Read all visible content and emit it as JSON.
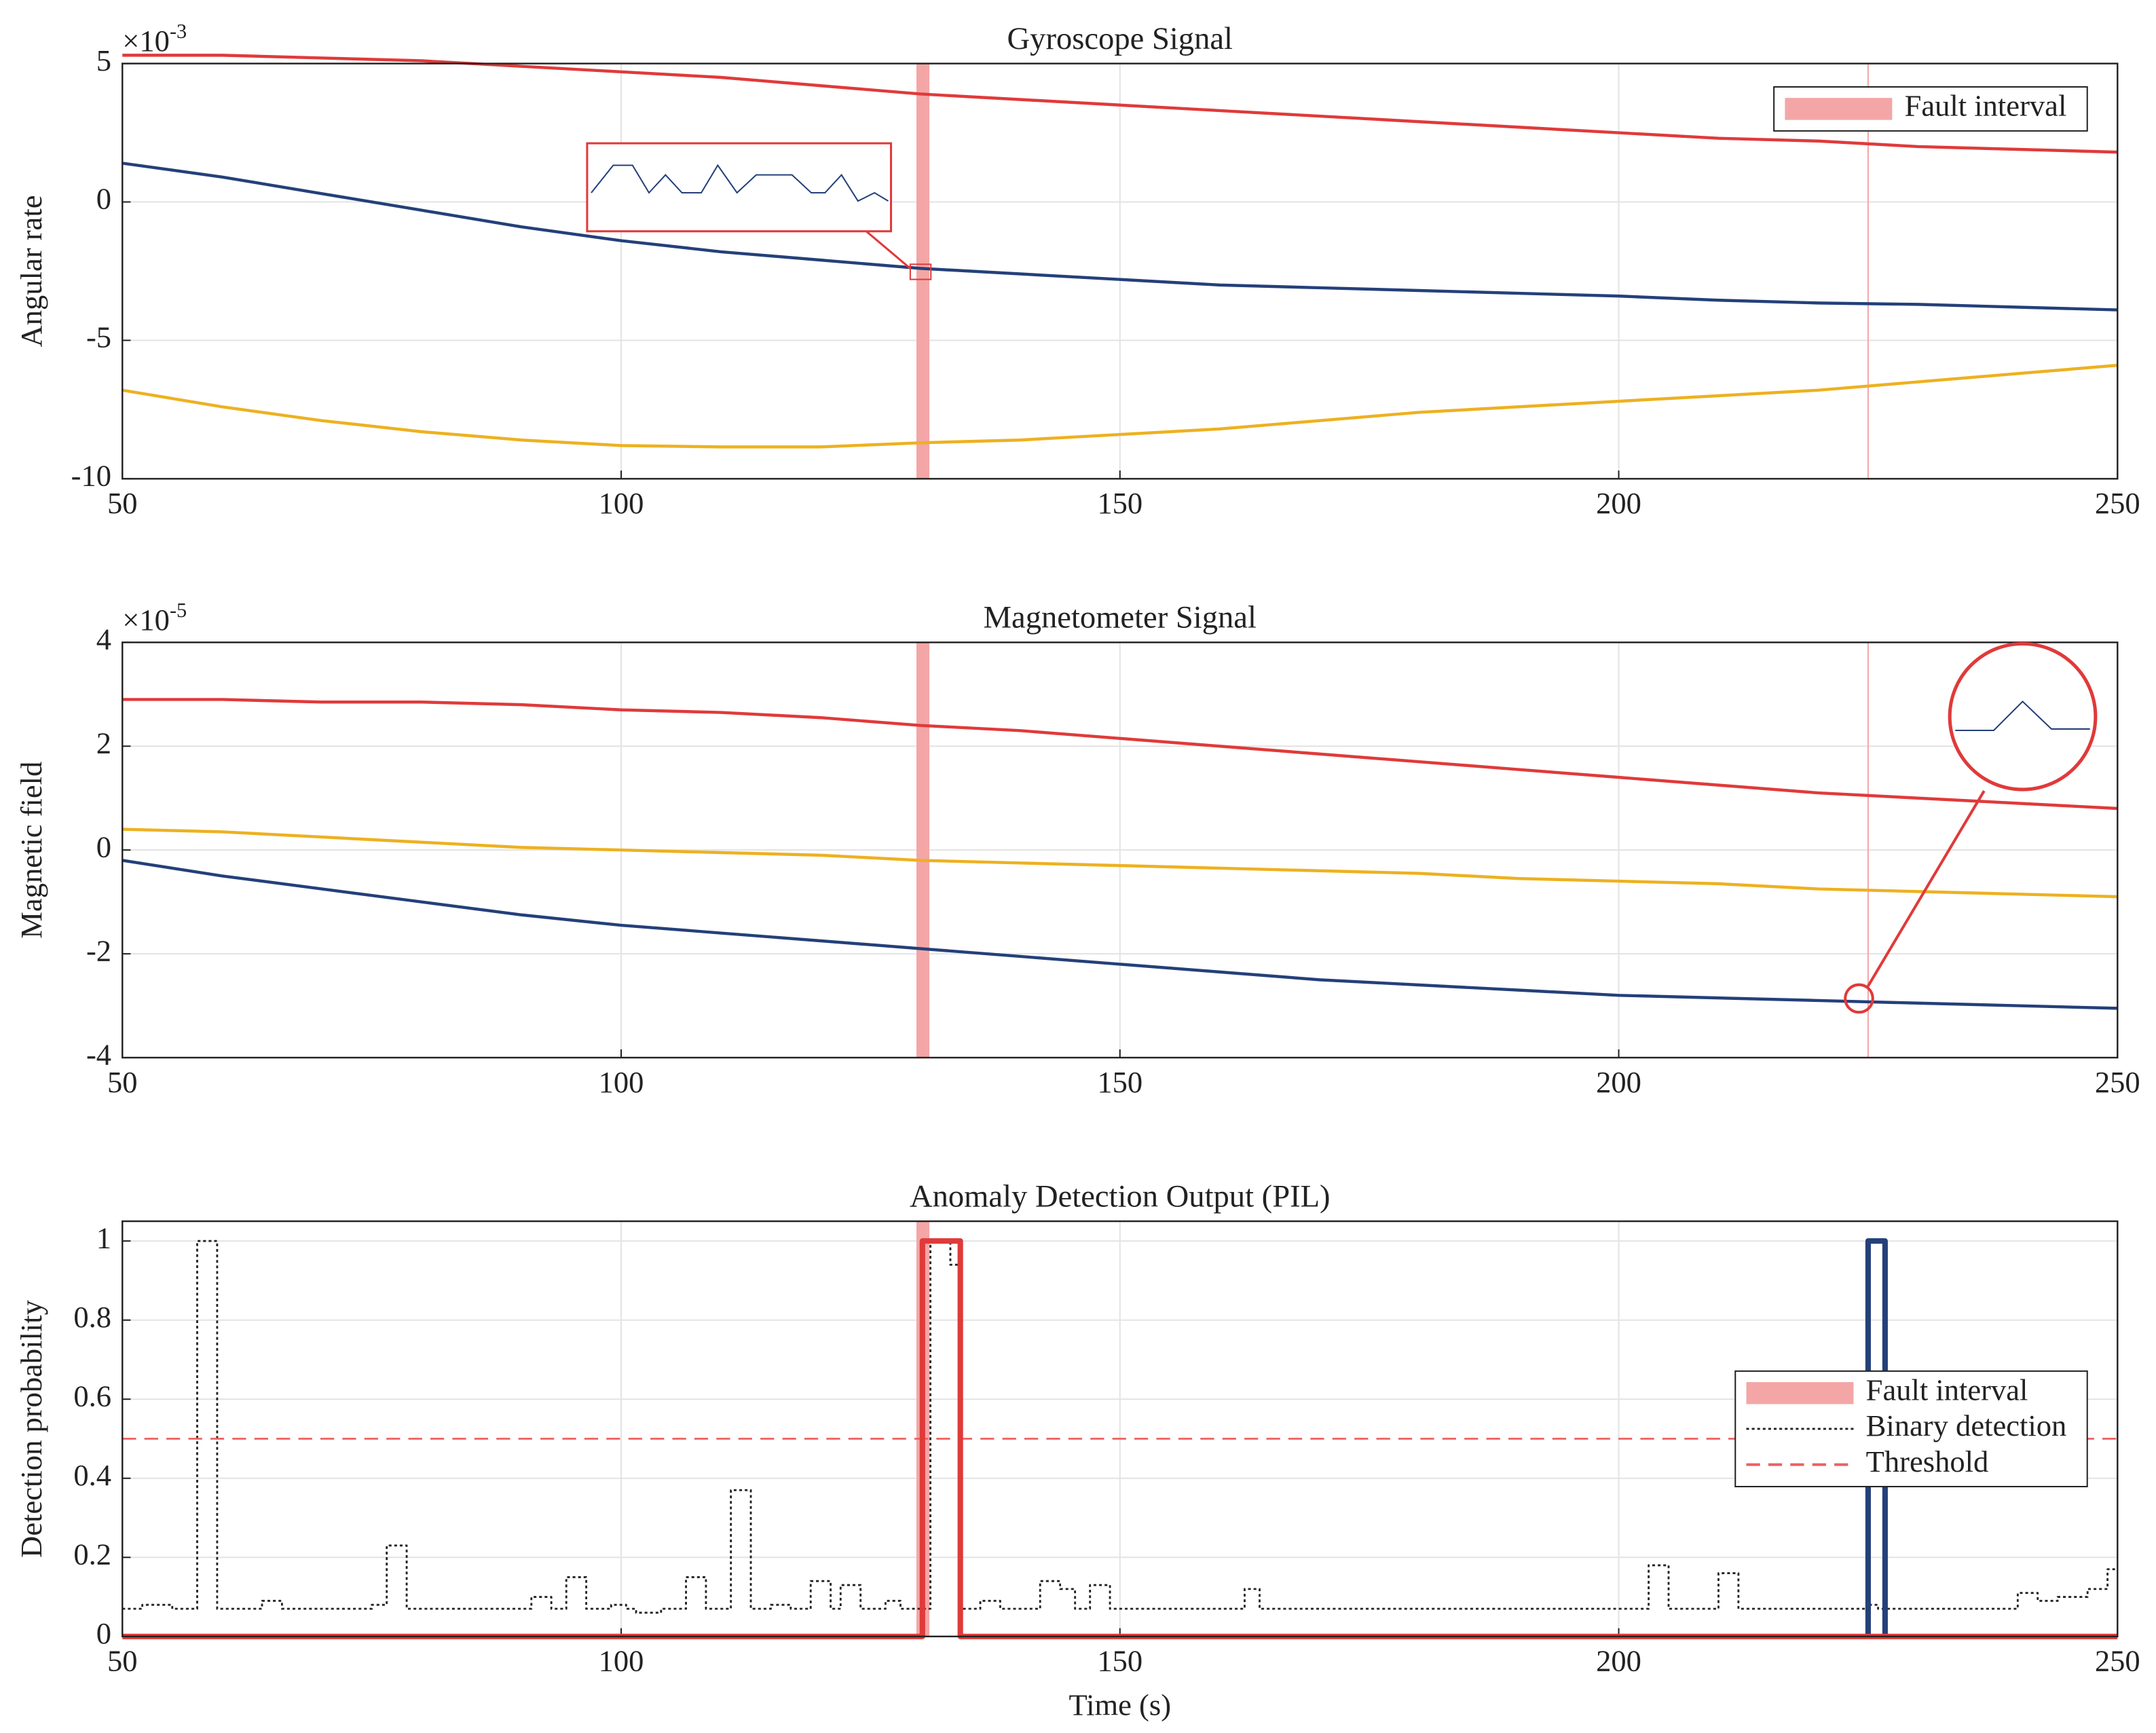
{
  "chart_data": [
    {
      "type": "line",
      "title": "Gyroscope Signal",
      "ylabel": "Angular rate",
      "y_multiplier": "×10",
      "y_exponent": "-3",
      "xlim": [
        50,
        250
      ],
      "xticks": [
        50,
        100,
        150,
        200,
        250
      ],
      "ylim": [
        -10,
        5
      ],
      "yticks": [
        -10,
        -5,
        0,
        5
      ],
      "grid": true,
      "legend": "northeast",
      "fault_interval": {
        "label": "Fault interval",
        "x": [
          129.6,
          130.9
        ],
        "color": "#f4a6a6"
      },
      "fault_lines": [
        225
      ],
      "x": [
        50,
        60,
        70,
        80,
        90,
        100,
        110,
        120,
        130,
        140,
        150,
        160,
        170,
        180,
        190,
        200,
        210,
        220,
        230,
        240,
        250
      ],
      "series": [
        {
          "color": "#e03a3a",
          "values": [
            5.3,
            5.3,
            5.2,
            5.1,
            4.9,
            4.7,
            4.5,
            4.2,
            3.9,
            3.7,
            3.5,
            3.3,
            3.1,
            2.9,
            2.7,
            2.5,
            2.3,
            2.2,
            2.0,
            1.9,
            1.8
          ]
        },
        {
          "color": "#24407a",
          "values": [
            1.4,
            0.9,
            0.3,
            -0.3,
            -0.9,
            -1.4,
            -1.8,
            -2.1,
            -2.4,
            -2.6,
            -2.8,
            -3.0,
            -3.1,
            -3.2,
            -3.3,
            -3.4,
            -3.55,
            -3.65,
            -3.7,
            -3.8,
            -3.9
          ]
        },
        {
          "color": "#edb120",
          "values": [
            -6.8,
            -7.4,
            -7.9,
            -8.3,
            -8.6,
            -8.8,
            -8.85,
            -8.85,
            -8.7,
            -8.6,
            -8.4,
            -8.2,
            -7.9,
            -7.6,
            -7.4,
            -7.2,
            -7.0,
            -6.8,
            -6.5,
            -6.2,
            -5.9
          ]
        }
      ]
    },
    {
      "type": "line",
      "title": "Magnetometer Signal",
      "ylabel": "Magnetic field",
      "y_multiplier": "×10",
      "y_exponent": "-5",
      "xlim": [
        50,
        250
      ],
      "xticks": [
        50,
        100,
        150,
        200,
        250
      ],
      "ylim": [
        -4,
        4
      ],
      "yticks": [
        -4,
        -2,
        0,
        2,
        4
      ],
      "grid": true,
      "fault_interval": {
        "x": [
          129.6,
          130.9
        ],
        "color": "#f4a6a6"
      },
      "fault_lines": [
        225
      ],
      "x": [
        50,
        60,
        70,
        80,
        90,
        100,
        110,
        120,
        130,
        140,
        150,
        160,
        170,
        180,
        190,
        200,
        210,
        220,
        230,
        240,
        250
      ],
      "series": [
        {
          "color": "#e03a3a",
          "values": [
            2.9,
            2.9,
            2.85,
            2.85,
            2.8,
            2.7,
            2.65,
            2.55,
            2.4,
            2.3,
            2.15,
            2.0,
            1.85,
            1.7,
            1.55,
            1.4,
            1.25,
            1.1,
            1.0,
            0.9,
            0.8
          ]
        },
        {
          "color": "#edb120",
          "values": [
            0.4,
            0.35,
            0.25,
            0.15,
            0.05,
            0.0,
            -0.05,
            -0.1,
            -0.2,
            -0.25,
            -0.3,
            -0.35,
            -0.4,
            -0.45,
            -0.55,
            -0.6,
            -0.65,
            -0.75,
            -0.8,
            -0.85,
            -0.9
          ]
        },
        {
          "color": "#24407a",
          "values": [
            -0.2,
            -0.5,
            -0.75,
            -1.0,
            -1.25,
            -1.45,
            -1.6,
            -1.75,
            -1.9,
            -2.05,
            -2.2,
            -2.35,
            -2.5,
            -2.6,
            -2.7,
            -2.8,
            -2.85,
            -2.9,
            -2.95,
            -3.0,
            -3.05
          ]
        }
      ]
    },
    {
      "type": "line",
      "title": "Anomaly Detection Output (PIL)",
      "xlabel": "Time (s)",
      "ylabel": "Detection probability",
      "xlim": [
        50,
        250
      ],
      "xticks": [
        50,
        100,
        150,
        200,
        250
      ],
      "ylim": [
        0,
        1.05
      ],
      "yticks": [
        0,
        0.2,
        0.4,
        0.6,
        0.8,
        1
      ],
      "grid": true,
      "legend": "east",
      "fault_interval": {
        "label": "Fault interval",
        "x": [
          129.6,
          130.9
        ],
        "color": "#f4a6a6"
      },
      "series": [
        {
          "name": "Binary detection",
          "color": "#222222",
          "dash": "dotted",
          "step": true,
          "x": [
            50,
            52,
            55,
            57.5,
            59.5,
            64,
            66,
            75,
            76.5,
            78.5,
            91,
            93,
            94.5,
            96.5,
            99,
            100.5,
            101.5,
            104,
            106.5,
            108.5,
            111,
            113,
            115,
            117,
            119,
            121,
            122,
            124,
            126.5,
            128,
            131,
            133,
            134,
            136,
            138,
            142,
            144,
            145.5,
            147,
            149,
            162.5,
            164,
            175,
            203,
            205,
            210,
            212,
            225,
            226,
            240,
            242,
            244,
            247,
            249,
            250
          ],
          "values": [
            0.07,
            0.08,
            0.07,
            1.0,
            0.07,
            0.09,
            0.07,
            0.08,
            0.23,
            0.07,
            0.1,
            0.07,
            0.15,
            0.07,
            0.08,
            0.07,
            0.06,
            0.07,
            0.15,
            0.07,
            0.37,
            0.07,
            0.08,
            0.07,
            0.14,
            0.07,
            0.13,
            0.07,
            0.09,
            0.07,
            1.0,
            0.94,
            0.07,
            0.09,
            0.07,
            0.14,
            0.12,
            0.07,
            0.13,
            0.07,
            0.12,
            0.07,
            0.07,
            0.18,
            0.07,
            0.16,
            0.07,
            0.08,
            0.07,
            0.11,
            0.09,
            0.1,
            0.12,
            0.17,
            0.17
          ]
        },
        {
          "name": "Threshold",
          "color": "#ee6060",
          "dash": "dashed",
          "x": [
            50,
            250
          ],
          "values": [
            0.5,
            0.5
          ]
        },
        {
          "color": "#24407a",
          "width": 4,
          "x": [
            225,
            225,
            226.7,
            226.7
          ],
          "values": [
            0,
            1,
            1,
            0
          ]
        },
        {
          "color": "#e03a3a",
          "width": 4,
          "x": [
            50,
            130.2,
            130.2,
            134,
            134,
            250
          ],
          "values": [
            0,
            0,
            1,
            1,
            0,
            0
          ]
        }
      ]
    }
  ]
}
